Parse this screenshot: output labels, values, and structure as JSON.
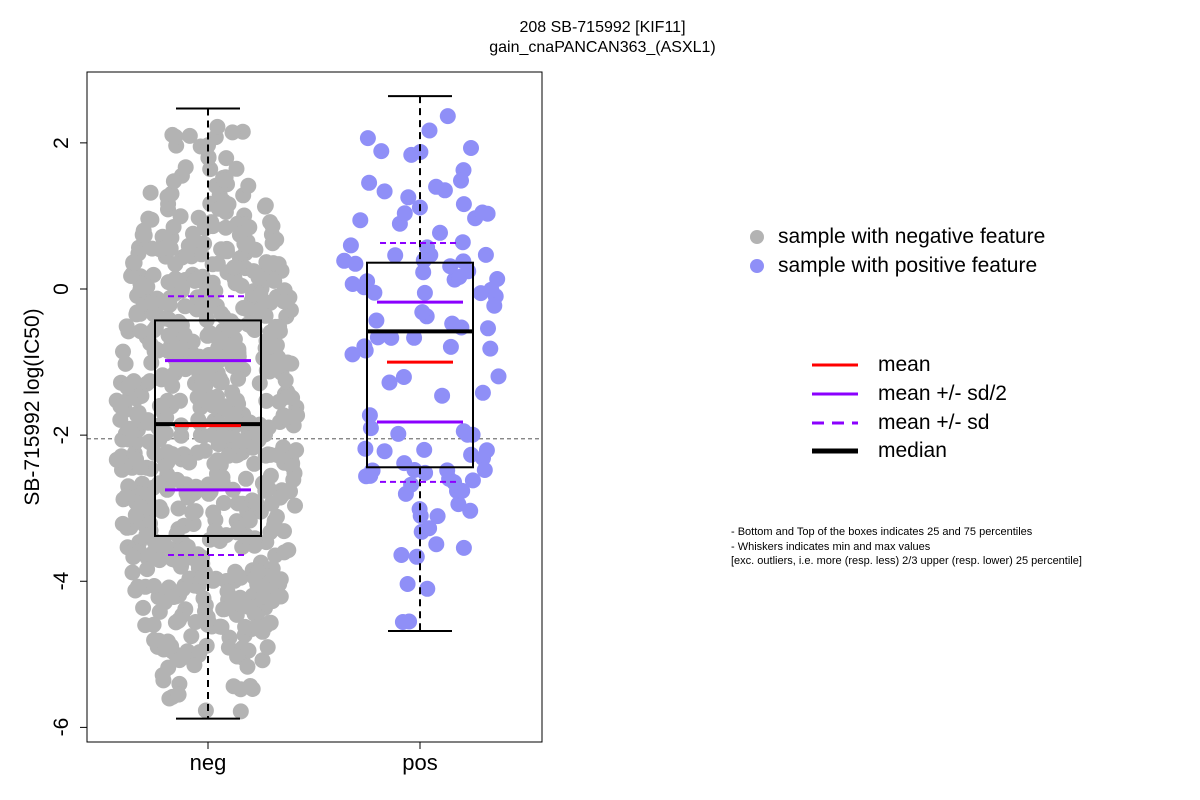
{
  "title_line1": "208 SB-715992 [KIF11]",
  "title_line2": "gain_cnaPANCAN363_(ASXL1)",
  "colors": {
    "neg": "#b3b3b3",
    "pos": "#8f8ff7",
    "mean": "#ff0000",
    "sd": "#8b00ff",
    "median": "#000000"
  },
  "legend_points": [
    {
      "label": "sample with negative feature",
      "color": "#b3b3b3"
    },
    {
      "label": "sample with positive feature",
      "color": "#8f8ff7"
    }
  ],
  "legend_lines": [
    {
      "label": "mean",
      "color": "#ff0000",
      "style": "solid"
    },
    {
      "label": "mean +/- sd/2",
      "color": "#8b00ff",
      "style": "solid"
    },
    {
      "label": "mean +/- sd",
      "color": "#8b00ff",
      "style": "dashed"
    },
    {
      "label": "median",
      "color": "#000000",
      "style": "solid-thick"
    }
  ],
  "notes": [
    "- Bottom and Top of the boxes indicates 25 and 75 percentiles",
    "- Whiskers indicates min and max values",
    "[exc. outliers, i.e. more (resp. less) 2/3 upper (resp. lower) 25 percentile]"
  ],
  "chart_data": {
    "type": "box",
    "title": "208 SB-715992 [KIF11]\ngain_cnaPANCAN363_(ASXL1)",
    "ylabel": "SB-715992 log(IC50)",
    "xlabel": "",
    "categories": [
      "neg",
      "pos"
    ],
    "ylim": [
      -6.2,
      2.97
    ],
    "yticks": [
      -6,
      -4,
      -2,
      0,
      2
    ],
    "ytick_labels": [
      "-6",
      "-4",
      "-2",
      "0",
      "2"
    ],
    "reference_line": -2.05,
    "series": [
      {
        "name": "neg",
        "color": "#b3b3b3",
        "n": 700,
        "min": -5.88,
        "q1": -3.38,
        "median": -1.85,
        "q3": -0.43,
        "max": 2.47,
        "mean": -1.87,
        "mean_minus_sd_half": -2.75,
        "mean_plus_sd_half": -0.98,
        "mean_minus_sd": -3.64,
        "mean_plus_sd": -0.1
      },
      {
        "name": "pos",
        "color": "#8f8ff7",
        "n": 110,
        "min": -4.68,
        "q1": -2.44,
        "median": -0.58,
        "q3": 0.36,
        "max": 2.64,
        "mean": -1.0,
        "mean_minus_sd_half": -1.82,
        "mean_plus_sd_half": -0.18,
        "mean_minus_sd": -2.64,
        "mean_plus_sd": 0.63
      }
    ]
  }
}
